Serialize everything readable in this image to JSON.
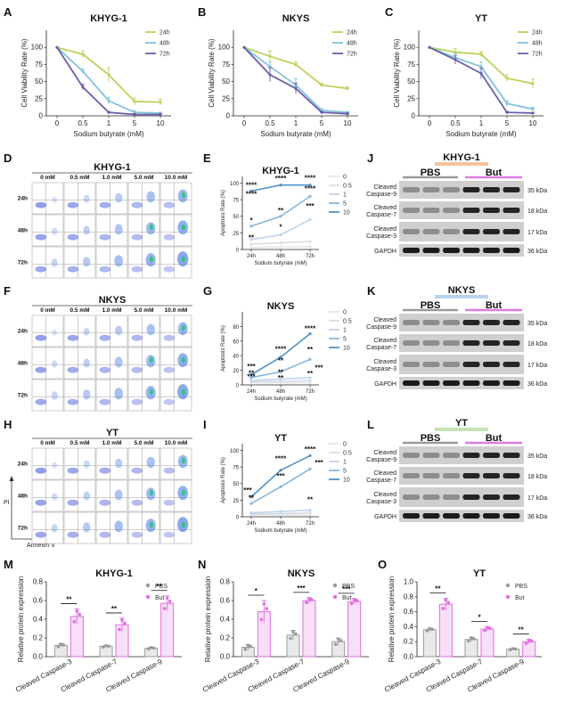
{
  "panel_letters": {
    "A": "A",
    "B": "B",
    "C": "C",
    "D": "D",
    "E": "E",
    "F": "F",
    "G": "G",
    "H": "H",
    "I": "I",
    "J": "J",
    "K": "K",
    "L": "L",
    "M": "M",
    "N": "N",
    "O": "O"
  },
  "series_colors": {
    "24h": "#b8d45a",
    "48h": "#80c4dd",
    "72h": "#6b5ea8",
    "c0": "#e6e6e6",
    "c05": "#d8dde6",
    "c1": "#bfd4ea",
    "c5": "#86b7dc",
    "c10": "#4d92c7",
    "pbs": "#9a9a9a",
    "but": "#de6fdf",
    "flowbg": "#ffffff"
  },
  "chart_data": [
    {
      "id": "A",
      "type": "line",
      "title": "KHYG-1",
      "xlabel": "Sodium butyrate (mM)",
      "ylabel": "Cell Viability Rate (%)",
      "categories": [
        "0",
        "0.5",
        "1",
        "5",
        "10"
      ],
      "ylim": [
        0,
        125
      ],
      "yticks": [
        "0",
        "25",
        "50",
        "75",
        "100"
      ],
      "series": [
        {
          "name": "24h",
          "values": [
            100,
            90,
            60,
            21,
            20
          ]
        },
        {
          "name": "48h",
          "values": [
            100,
            65,
            22,
            5,
            4
          ]
        },
        {
          "name": "72h",
          "values": [
            100,
            42,
            5,
            2,
            2
          ]
        }
      ]
    },
    {
      "id": "B",
      "type": "line",
      "title": "NKYS",
      "xlabel": "Sodium butyrate (mM)",
      "ylabel": "Cell Viability Rate (%)",
      "categories": [
        "0",
        "0.5",
        "1",
        "5",
        "10"
      ],
      "ylim": [
        0,
        125
      ],
      "yticks": [
        "0",
        "25",
        "50",
        "75",
        "100"
      ],
      "series": [
        {
          "name": "24h",
          "values": [
            100,
            87,
            75,
            45,
            40
          ]
        },
        {
          "name": "48h",
          "values": [
            100,
            72,
            45,
            8,
            5
          ]
        },
        {
          "name": "72h",
          "values": [
            100,
            60,
            40,
            5,
            3
          ]
        }
      ]
    },
    {
      "id": "C",
      "type": "line",
      "title": "YT",
      "xlabel": "Sodium butyrate (mM)",
      "ylabel": "Cell Viability Rate (%)",
      "categories": [
        "0",
        "0.5",
        "1",
        "5",
        "10"
      ],
      "ylim": [
        0,
        125
      ],
      "yticks": [
        "0",
        "25",
        "50",
        "75",
        "100"
      ],
      "series": [
        {
          "name": "24h",
          "values": [
            100,
            93,
            90,
            55,
            47
          ]
        },
        {
          "name": "48h",
          "values": [
            100,
            85,
            72,
            18,
            10
          ]
        },
        {
          "name": "72h",
          "values": [
            100,
            82,
            62,
            5,
            4
          ]
        }
      ]
    },
    {
      "id": "E",
      "type": "line",
      "title": "KHYG-1",
      "xlabel": "Sodium butyrate (mM)",
      "ylabel": "Apoptosis Rate (%)",
      "categories": [
        "24h",
        "48h",
        "72h"
      ],
      "ylim": [
        0,
        110
      ],
      "yticks": [
        "0",
        "25",
        "50",
        "75",
        "100"
      ],
      "series": [
        {
          "name": "0",
          "values": [
            3,
            4,
            4
          ]
        },
        {
          "name": "0.5",
          "values": [
            8,
            10,
            12
          ]
        },
        {
          "name": "1",
          "values": [
            15,
            22,
            45
          ]
        },
        {
          "name": "5",
          "values": [
            35,
            50,
            80
          ]
        },
        {
          "name": "10",
          "values": [
            88,
            97,
            97
          ]
        }
      ],
      "annotations": [
        "****",
        "****",
        "****",
        "****",
        "****",
        "*",
        "**",
        "***",
        "*",
        "**"
      ]
    },
    {
      "id": "G",
      "type": "line",
      "title": "NKYS",
      "xlabel": "Sodium butyrate (mM)",
      "ylabel": "Apoptosis Rate (%)",
      "categories": [
        "24h",
        "48h",
        "72h"
      ],
      "ylim": [
        0,
        100
      ],
      "yticks": [
        "0",
        "20",
        "40",
        "60",
        "80"
      ],
      "series": [
        {
          "name": "0",
          "values": [
            3,
            3,
            3
          ]
        },
        {
          "name": "0.5",
          "values": [
            4,
            5,
            6
          ]
        },
        {
          "name": "1",
          "values": [
            6,
            8,
            10
          ]
        },
        {
          "name": "5",
          "values": [
            10,
            18,
            35
          ]
        },
        {
          "name": "10",
          "values": [
            14,
            38,
            70
          ]
        }
      ],
      "annotations": [
        "****",
        "**",
        "****",
        "**",
        "***",
        "**",
        "**",
        "**",
        "***",
        "***",
        "**"
      ]
    },
    {
      "id": "I",
      "type": "line",
      "title": "YT",
      "xlabel": "Sodium butyrate (mM)",
      "ylabel": "Apoptosis Rate (%)",
      "categories": [
        "24h",
        "48h",
        "72h"
      ],
      "ylim": [
        0,
        110
      ],
      "yticks": [
        "0",
        "25",
        "50",
        "75",
        "100"
      ],
      "series": [
        {
          "name": "0",
          "values": [
            3,
            3,
            3
          ]
        },
        {
          "name": "0.5",
          "values": [
            4,
            5,
            6
          ]
        },
        {
          "name": "1",
          "values": [
            6,
            8,
            10
          ]
        },
        {
          "name": "5",
          "values": [
            20,
            45,
            72
          ]
        },
        {
          "name": "10",
          "values": [
            30,
            70,
            92
          ]
        }
      ],
      "annotations": [
        "****",
        "****",
        "***",
        "***",
        "***",
        "**",
        "**"
      ]
    },
    {
      "id": "M",
      "type": "bar",
      "title": "KHYG-1",
      "ylabel": "Relative protein expression",
      "categories": [
        "Cleaved Caspase-3",
        "Cleaved Caspase-7",
        "Cleaved Caspase-9"
      ],
      "ylim": [
        0,
        0.8
      ],
      "yticks": [
        "0.0",
        "0.2",
        "0.4",
        "0.6",
        "0.8"
      ],
      "series": [
        {
          "name": "PBS",
          "values": [
            0.12,
            0.11,
            0.09
          ]
        },
        {
          "name": "But",
          "values": [
            0.43,
            0.34,
            0.57
          ]
        }
      ],
      "significance": [
        "**",
        "**",
        "**"
      ]
    },
    {
      "id": "N",
      "type": "bar",
      "title": "NKYS",
      "ylabel": "Relative protein expression",
      "categories": [
        "Cleaved Caspase-3",
        "Cleaved Caspase-7",
        "Cleaved Caspase-9"
      ],
      "ylim": [
        0,
        0.8
      ],
      "yticks": [
        "0.0",
        "0.2",
        "0.4",
        "0.6",
        "0.8"
      ],
      "series": [
        {
          "name": "PBS",
          "values": [
            0.1,
            0.23,
            0.16
          ]
        },
        {
          "name": "But",
          "values": [
            0.48,
            0.6,
            0.59
          ]
        }
      ],
      "significance": [
        "*",
        "***",
        "***"
      ]
    },
    {
      "id": "O",
      "type": "bar",
      "title": "YT",
      "ylabel": "Relative protein expression",
      "categories": [
        "Cleaved Caspase-3",
        "Cleaved Caspase-7",
        "Cleaved Caspase-9"
      ],
      "ylim": [
        0,
        1.0
      ],
      "yticks": [
        "0.0",
        "0.2",
        "0.4",
        "0.6",
        "0.8",
        "1.0"
      ],
      "series": [
        {
          "name": "PBS",
          "values": [
            0.36,
            0.23,
            0.1
          ]
        },
        {
          "name": "But",
          "values": [
            0.7,
            0.37,
            0.2
          ]
        }
      ],
      "significance": [
        "**",
        "*",
        "**"
      ]
    }
  ],
  "flow": {
    "concentrations": [
      "0 mM",
      "0.5 mM",
      "1.0 mM",
      "5.0 mM",
      "10.0 mM"
    ],
    "times": [
      "24h",
      "48h",
      "72h"
    ],
    "titles": {
      "D": "KHYG-1",
      "F": "NKYS",
      "H": "YT"
    },
    "axis_pi": "PI",
    "axis_annexin": "Annexin V"
  },
  "western": {
    "titles": {
      "J": "KHYG-1",
      "K": "NKYS",
      "L": "YT"
    },
    "group_pbs": "PBS",
    "group_but": "But",
    "rows": [
      {
        "label1": "Cleaved",
        "label2": "Caspase-9",
        "kda": "35 kDa"
      },
      {
        "label1": "Cleaved",
        "label2": "Caspase-7",
        "kda": "18 kDa"
      },
      {
        "label1": "Cleaved",
        "label2": "Caspase-3",
        "kda": "17 kDa"
      },
      {
        "label1": "GAPDH",
        "label2": "",
        "kda": "36 kDa"
      }
    ],
    "bar_colors": {
      "J": "#f4c39c",
      "K": "#b8d3ee",
      "L": "#c6e3b7"
    }
  },
  "legend_time": [
    "24h",
    "48h",
    "72h"
  ],
  "legend_conc": [
    "0",
    "0.5",
    "1",
    "5",
    "10"
  ],
  "legend_group": [
    "PBS",
    "But"
  ]
}
